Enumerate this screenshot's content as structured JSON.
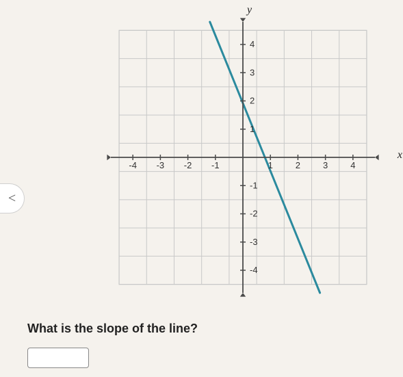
{
  "nav": {
    "prev_glyph": "<"
  },
  "chart": {
    "type": "line",
    "xlim": [
      -4.8,
      4.8
    ],
    "ylim": [
      -4.8,
      4.8
    ],
    "xtick_labels": [
      "-4",
      "-3",
      "-2",
      "-1",
      "1",
      "2",
      "3",
      "4"
    ],
    "xtick_values": [
      -4,
      -3,
      -2,
      -1,
      1,
      2,
      3,
      4
    ],
    "ytick_labels": [
      "-4",
      "-3",
      "-2",
      "-1",
      "1",
      "2",
      "3",
      "4"
    ],
    "ytick_values": [
      -4,
      -3,
      -2,
      -1,
      1,
      2,
      3,
      4
    ],
    "x_axis_label": "x",
    "y_axis_label": "y",
    "grid_min": -4.5,
    "grid_max": 4.5,
    "grid_step": 1,
    "grid_color": "#c8c8c8",
    "axis_color": "#4a4a4a",
    "background_color": "#f5f2ed",
    "tick_fontsize": 13,
    "axis_label_fontsize": 16,
    "line": {
      "p1": [
        -1.2,
        4.8
      ],
      "p2": [
        2.8,
        -4.8
      ],
      "color": "#2b8a9e",
      "width": 3
    }
  },
  "question": {
    "text": "What is the slope of the line?"
  },
  "answer": {
    "value": ""
  }
}
